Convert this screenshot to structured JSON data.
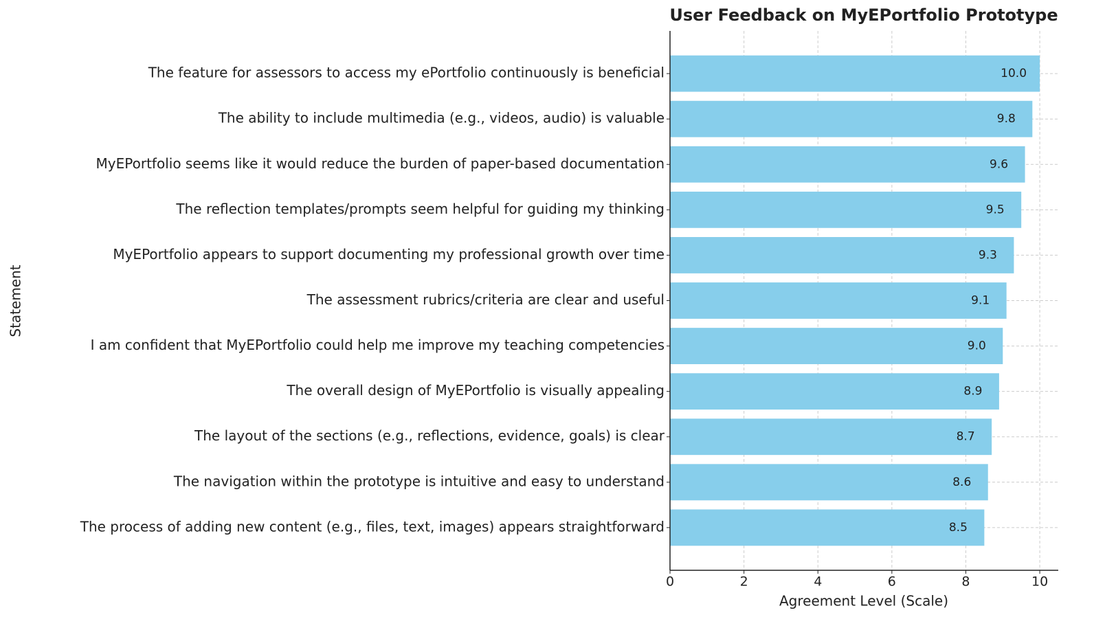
{
  "chart_data": {
    "type": "barh",
    "title": "User Feedback on MyEPortfolio Prototype",
    "x_label": "Agreement Level (Scale)",
    "y_label": "Statement",
    "categories": [
      "The feature for assessors to access my ePortfolio continuously is beneficial",
      "The ability to include multimedia (e.g., videos, audio) is valuable",
      "MyEPortfolio seems like it would reduce the burden of paper-based documentation",
      "The reflection templates/prompts seem helpful for guiding my thinking",
      "MyEPortfolio appears to support documenting my professional growth over time",
      "The assessment rubrics/criteria are clear and useful",
      "I am confident that MyEPortfolio could help me improve my teaching competencies",
      "The overall design of MyEPortfolio is visually appealing",
      "The layout of the sections (e.g., reflections, evidence, goals) is clear",
      "The navigation within the prototype is intuitive and easy to understand",
      "The process of adding new content (e.g., files, text, images) appears straightforward"
    ],
    "values": [
      10.0,
      9.8,
      9.6,
      9.5,
      9.3,
      9.1,
      9.0,
      8.9,
      8.7,
      8.6,
      8.5
    ],
    "value_labels": [
      "10.0",
      "9.8",
      "9.6",
      "9.5",
      "9.3",
      "9.1",
      "9.0",
      "8.9",
      "8.7",
      "8.6",
      "8.5"
    ],
    "color": "#87ceeb",
    "xlim": [
      0,
      10.5
    ],
    "xticks": [
      0,
      2,
      4,
      6,
      8,
      10
    ],
    "grid": true
  }
}
